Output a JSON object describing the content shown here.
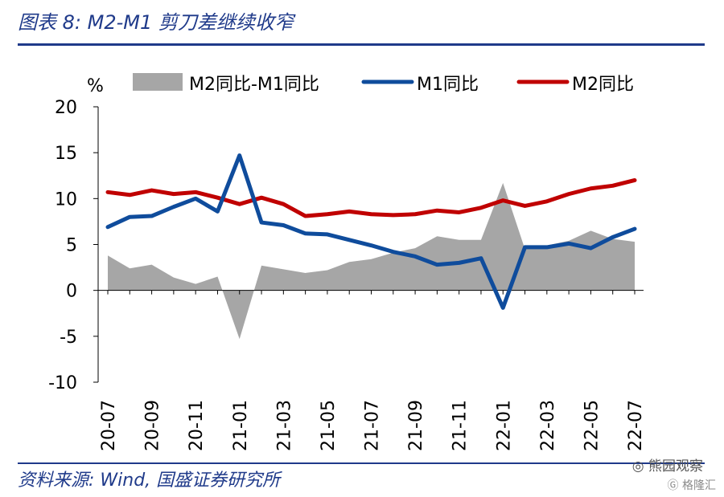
{
  "figure": {
    "title": "图表 8:  M2-M1 剪刀差继续收窄",
    "source": "资料来源:  Wind, 国盛证券研究所",
    "watermark_text": "熊园观察",
    "watermark_sub": "格隆汇"
  },
  "colors": {
    "gap": "#a6a6a6",
    "m1": "#0f4c9c",
    "m2": "#c00000",
    "title": "#1f3a8a"
  },
  "chart_data": {
    "type": "line",
    "unit_label": "%",
    "categories": [
      "20-07",
      "20-08",
      "20-09",
      "20-10",
      "20-11",
      "20-12",
      "21-01",
      "21-02",
      "21-03",
      "21-04",
      "21-05",
      "21-06",
      "21-07",
      "21-08",
      "21-09",
      "21-10",
      "21-11",
      "21-12",
      "22-01",
      "22-02",
      "22-03",
      "22-04",
      "22-05",
      "22-06",
      "22-07"
    ],
    "tick_labels": [
      "20-07",
      "20-09",
      "20-11",
      "21-01",
      "21-03",
      "21-05",
      "21-07",
      "21-09",
      "21-11",
      "22-01",
      "22-03",
      "22-05",
      "22-07"
    ],
    "ylim": [
      -10,
      20
    ],
    "yticks": [
      -10,
      -5,
      0,
      5,
      10,
      15,
      20
    ],
    "series": [
      {
        "name": "M2同比-M1同比",
        "kind": "area",
        "values": [
          3.8,
          2.4,
          2.8,
          1.4,
          0.7,
          1.5,
          -5.3,
          2.7,
          2.3,
          1.9,
          2.2,
          3.1,
          3.4,
          4.1,
          4.6,
          5.9,
          5.5,
          5.5,
          11.7,
          4.5,
          4.9,
          5.4,
          6.5,
          5.6,
          5.3
        ]
      },
      {
        "name": "M1同比",
        "kind": "line",
        "values": [
          6.9,
          8.0,
          8.1,
          9.1,
          10.0,
          8.6,
          14.7,
          7.4,
          7.1,
          6.2,
          6.1,
          5.5,
          4.9,
          4.2,
          3.7,
          2.8,
          3.0,
          3.5,
          -1.9,
          4.7,
          4.7,
          5.1,
          4.6,
          5.8,
          6.7
        ]
      },
      {
        "name": "M2同比",
        "kind": "line",
        "values": [
          10.7,
          10.4,
          10.9,
          10.5,
          10.7,
          10.1,
          9.4,
          10.1,
          9.4,
          8.1,
          8.3,
          8.6,
          8.3,
          8.2,
          8.3,
          8.7,
          8.5,
          9.0,
          9.8,
          9.2,
          9.7,
          10.5,
          11.1,
          11.4,
          12.0
        ]
      }
    ],
    "legend_placement": "top",
    "grid": false
  }
}
